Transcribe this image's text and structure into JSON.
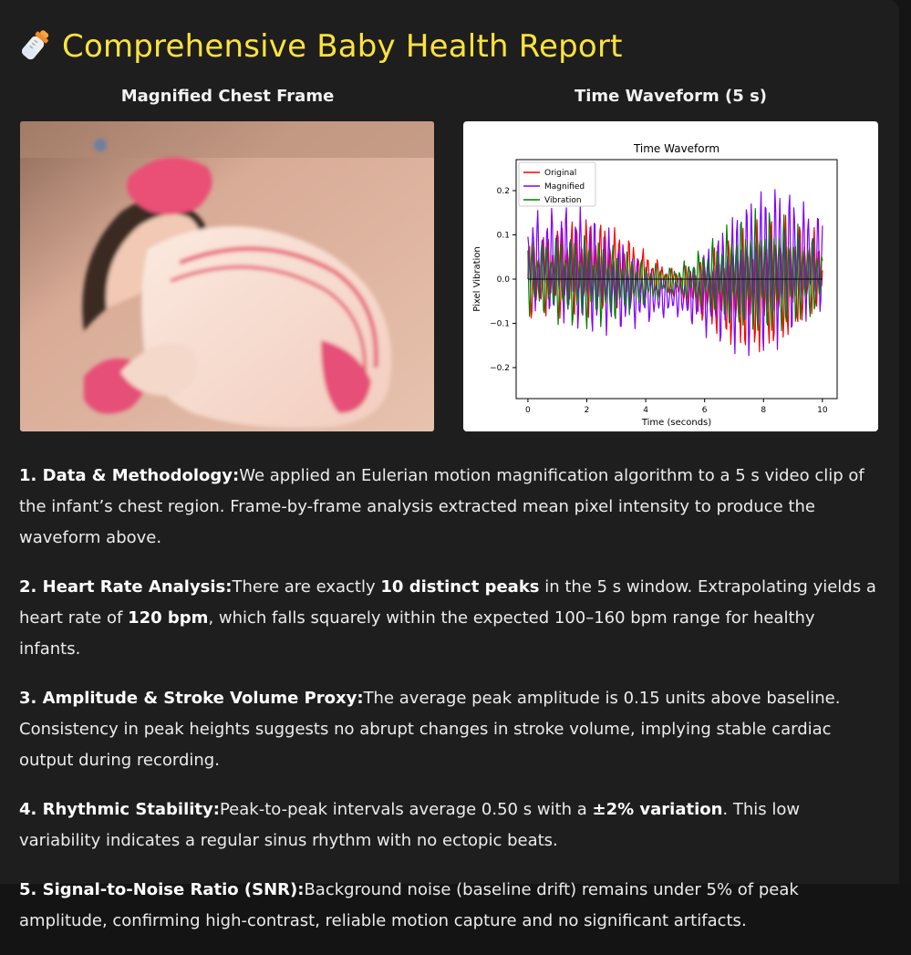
{
  "header": {
    "title": "Comprehensive Baby Health Report"
  },
  "left_panel": {
    "heading": "Magnified Chest Frame"
  },
  "right_panel": {
    "heading": "Time Waveform (5 s)"
  },
  "chart_data": {
    "type": "line",
    "title": "Time Waveform",
    "xlabel": "Time (seconds)",
    "ylabel": "Pixel Vibration",
    "xlim": [
      -0.4,
      10.5
    ],
    "ylim": [
      -0.27,
      0.27
    ],
    "x_ticks": [
      0,
      2,
      4,
      6,
      8,
      10
    ],
    "x_tick_labels": [
      "0",
      "2",
      "4",
      "6",
      "8",
      "10"
    ],
    "y_ticks": [
      -0.2,
      -0.1,
      0.0,
      0.1,
      0.2
    ],
    "y_tick_labels": [
      "−0.2",
      "−0.1",
      "0.0",
      "0.1",
      "0.2"
    ],
    "legend_position": "top-left",
    "baseline": 0.0,
    "series": [
      {
        "name": "Original",
        "color": "#ff0000"
      },
      {
        "name": "Magnified",
        "color": "#7f00ff"
      },
      {
        "name": "Vibration",
        "color": "#008000"
      }
    ]
  },
  "report": {
    "items": [
      {
        "heading": "1. Data & Methodology:",
        "segments": [
          {
            "t": "We applied an Eulerian motion magnification algorithm to a 5 s video clip of the infant’s chest region. Frame-by-frame analysis extracted mean pixel intensity to produce the waveform above."
          }
        ]
      },
      {
        "heading": "2. Heart Rate Analysis:",
        "segments": [
          {
            "t": "There are exactly "
          },
          {
            "t": "10 distinct peaks",
            "b": true
          },
          {
            "t": " in the 5 s window. Extrapolating yields a heart rate of "
          },
          {
            "t": "120 bpm",
            "b": true
          },
          {
            "t": ", which falls squarely within the expected 100–160 bpm range for healthy infants."
          }
        ]
      },
      {
        "heading": "3. Amplitude & Stroke Volume Proxy:",
        "segments": [
          {
            "t": "The average peak amplitude is 0.15 units above baseline. Consistency in peak heights suggests no abrupt changes in stroke volume, implying stable cardiac output during recording."
          }
        ]
      },
      {
        "heading": "4. Rhythmic Stability:",
        "segments": [
          {
            "t": "Peak-to-peak intervals average 0.50 s with a "
          },
          {
            "t": "±2% variation",
            "b": true
          },
          {
            "t": ". This low variability indicates a regular sinus rhythm with no ectopic beats."
          }
        ]
      },
      {
        "heading": "5. Signal-to-Noise Ratio (SNR):",
        "segments": [
          {
            "t": "Background noise (baseline drift) remains under 5% of peak amplitude, confirming high-contrast, reliable motion capture and no significant artifacts."
          }
        ]
      }
    ]
  }
}
